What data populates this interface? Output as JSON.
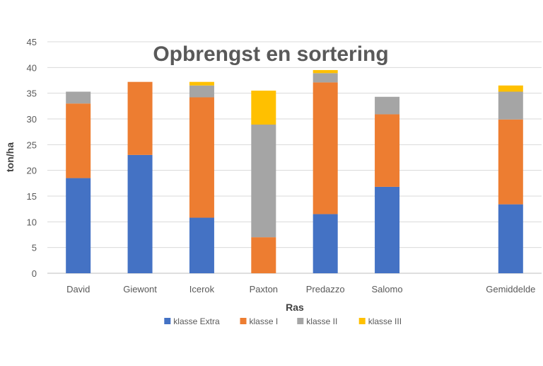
{
  "chart_data": {
    "type": "bar",
    "stacked": true,
    "title": "Opbrengst en sortering",
    "xlabel": "Ras",
    "ylabel": "ton/ha",
    "ylim": [
      0,
      45
    ],
    "yticks": [
      0,
      5,
      10,
      15,
      20,
      25,
      30,
      35,
      40,
      45
    ],
    "grid": true,
    "legend_position": "bottom",
    "categories": [
      "David",
      "Giewont",
      "Icerok",
      "Paxton",
      "Predazzo",
      "Salomo",
      "",
      "Gemiddelde"
    ],
    "series": [
      {
        "name": "klasse Extra",
        "color": "#4472C4",
        "values": [
          18.5,
          23.0,
          10.8,
          0.0,
          11.5,
          16.8,
          0,
          13.4
        ]
      },
      {
        "name": "klasse I",
        "color": "#ED7D31",
        "values": [
          14.5,
          14.2,
          23.4,
          7.0,
          25.6,
          14.1,
          0,
          16.5
        ]
      },
      {
        "name": "klasse II",
        "color": "#A5A5A5",
        "values": [
          2.3,
          0.0,
          2.3,
          21.9,
          1.8,
          3.4,
          0,
          5.4
        ]
      },
      {
        "name": "klasse III",
        "color": "#FFC000",
        "values": [
          0.0,
          0.0,
          0.7,
          6.6,
          0.6,
          0.0,
          0,
          1.2
        ]
      }
    ]
  }
}
